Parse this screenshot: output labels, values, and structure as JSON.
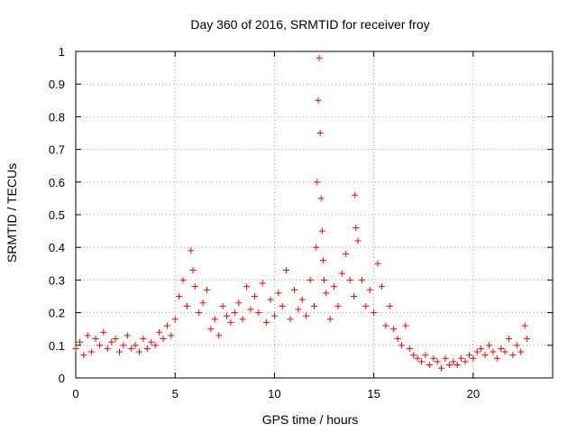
{
  "chart_data": {
    "type": "scatter",
    "title": "Day 360 of 2016, SRMTID for receiver froy",
    "xlabel": "GPS time / hours",
    "ylabel": "SRMTID / TECUs",
    "xlim": [
      0,
      24
    ],
    "ylim": [
      0,
      1
    ],
    "xticks": [
      0,
      5,
      10,
      15,
      20
    ],
    "xtick_labels": [
      "0",
      "5",
      "10",
      "15",
      "20"
    ],
    "yticks": [
      0,
      0.1,
      0.2,
      0.3,
      0.4,
      0.5,
      0.6,
      0.7,
      0.8,
      0.9,
      1
    ],
    "ytick_labels": [
      "0",
      "0.1",
      "0.2",
      "0.3",
      "0.4",
      "0.5",
      "0.6",
      "0.7",
      "0.8",
      "0.9",
      "1"
    ],
    "grid": true,
    "marker": "+",
    "color": "#ff0000",
    "series": [
      {
        "name": "SRMTID",
        "x": [
          0.0,
          0.2,
          0.4,
          0.6,
          0.8,
          1.0,
          1.2,
          1.4,
          1.6,
          1.8,
          2.0,
          2.2,
          2.4,
          2.6,
          2.8,
          3.0,
          3.2,
          3.4,
          3.6,
          3.8,
          4.0,
          4.2,
          4.4,
          4.6,
          4.8,
          5.0,
          5.2,
          5.4,
          5.6,
          5.8,
          5.9,
          6.0,
          6.2,
          6.4,
          6.6,
          6.8,
          7.0,
          7.2,
          7.4,
          7.6,
          7.8,
          8.0,
          8.2,
          8.4,
          8.6,
          8.8,
          9.0,
          9.2,
          9.4,
          9.6,
          9.8,
          10.0,
          10.2,
          10.4,
          10.6,
          10.8,
          11.0,
          11.2,
          11.4,
          11.6,
          11.8,
          12.0,
          12.1,
          12.15,
          12.2,
          12.25,
          12.3,
          12.35,
          12.4,
          12.45,
          12.5,
          12.6,
          12.8,
          13.0,
          13.2,
          13.4,
          13.6,
          13.8,
          14.0,
          14.05,
          14.1,
          14.2,
          14.4,
          14.6,
          14.8,
          15.0,
          15.2,
          15.4,
          15.6,
          15.8,
          16.0,
          16.2,
          16.4,
          16.6,
          16.8,
          17.0,
          17.2,
          17.4,
          17.6,
          17.8,
          18.0,
          18.2,
          18.4,
          18.6,
          18.8,
          19.0,
          19.2,
          19.4,
          19.6,
          19.8,
          20.0,
          20.2,
          20.4,
          20.6,
          20.8,
          21.0,
          21.2,
          21.4,
          21.6,
          21.8,
          22.0,
          22.2,
          22.4,
          22.6,
          22.7
        ],
        "y": [
          0.09,
          0.11,
          0.07,
          0.13,
          0.08,
          0.12,
          0.1,
          0.14,
          0.09,
          0.11,
          0.12,
          0.08,
          0.1,
          0.13,
          0.09,
          0.1,
          0.08,
          0.12,
          0.09,
          0.11,
          0.1,
          0.14,
          0.12,
          0.16,
          0.13,
          0.18,
          0.25,
          0.3,
          0.22,
          0.39,
          0.33,
          0.28,
          0.2,
          0.23,
          0.27,
          0.15,
          0.18,
          0.13,
          0.22,
          0.19,
          0.17,
          0.2,
          0.23,
          0.18,
          0.28,
          0.21,
          0.25,
          0.2,
          0.29,
          0.17,
          0.24,
          0.19,
          0.26,
          0.22,
          0.33,
          0.18,
          0.27,
          0.21,
          0.24,
          0.19,
          0.3,
          0.22,
          0.4,
          0.6,
          0.85,
          0.98,
          0.75,
          0.55,
          0.45,
          0.36,
          0.3,
          0.26,
          0.18,
          0.28,
          0.22,
          0.32,
          0.38,
          0.3,
          0.25,
          0.56,
          0.46,
          0.42,
          0.3,
          0.22,
          0.27,
          0.2,
          0.35,
          0.28,
          0.16,
          0.22,
          0.15,
          0.12,
          0.1,
          0.16,
          0.09,
          0.07,
          0.06,
          0.05,
          0.07,
          0.04,
          0.06,
          0.05,
          0.03,
          0.06,
          0.04,
          0.05,
          0.04,
          0.06,
          0.05,
          0.07,
          0.06,
          0.08,
          0.09,
          0.07,
          0.1,
          0.08,
          0.06,
          0.09,
          0.08,
          0.12,
          0.07,
          0.1,
          0.08,
          0.16,
          0.12
        ]
      }
    ]
  }
}
